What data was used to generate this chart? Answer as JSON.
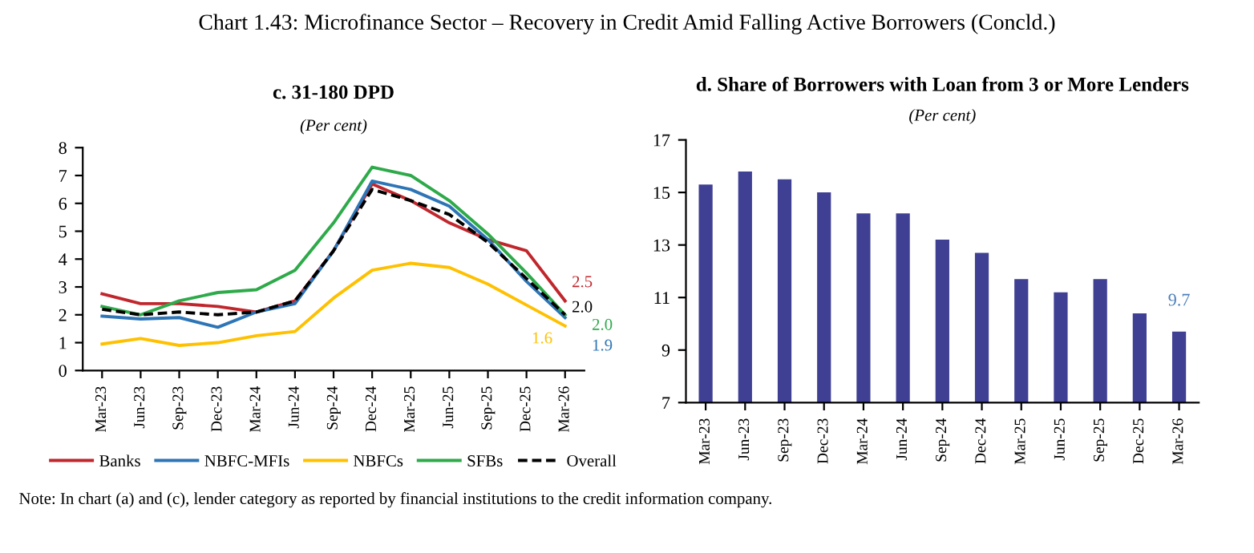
{
  "chart_data": [
    {
      "type": "line",
      "title": "c. 31-180 DPD",
      "subtitle": "(Per cent)",
      "annotations": [
        "Chart 1.43: Microfinance Sector – Recovery in Credit Amid Falling Active Borrowers (Concld.)",
        "Note: In chart (a) and (c), lender category as reported by financial institutions to the credit information company."
      ],
      "categories": [
        "Mar-23",
        "Jun-23",
        "Sep-23",
        "Dec-23",
        "Mar-24",
        "Jun-24",
        "Sep-24",
        "Dec-24",
        "Mar-25",
        "Jun-25",
        "Sep-25",
        "Dec-25",
        "Mar-26"
      ],
      "series": [
        {
          "name": "Banks",
          "color": "#c0272d",
          "values": [
            2.75,
            2.4,
            2.4,
            2.3,
            2.1,
            2.5,
            4.3,
            6.7,
            6.1,
            5.3,
            4.7,
            4.3,
            2.5
          ],
          "value_labels": [
            null,
            null,
            null,
            null,
            null,
            null,
            null,
            null,
            null,
            null,
            null,
            null,
            "2.5"
          ]
        },
        {
          "name": "NBFC-MFIs",
          "color": "#2e75b6",
          "values": [
            1.95,
            1.85,
            1.9,
            1.55,
            2.1,
            2.4,
            4.3,
            6.8,
            6.5,
            5.9,
            4.7,
            3.2,
            1.9
          ],
          "value_labels": [
            null,
            null,
            null,
            null,
            null,
            null,
            null,
            null,
            null,
            null,
            null,
            null,
            "1.9"
          ]
        },
        {
          "name": "NBFCs",
          "color": "#ffc000",
          "values": [
            0.95,
            1.15,
            0.9,
            1.0,
            1.25,
            1.4,
            2.6,
            3.6,
            3.85,
            3.7,
            3.1,
            2.35,
            1.6
          ],
          "value_labels": [
            null,
            null,
            null,
            null,
            null,
            null,
            null,
            null,
            null,
            null,
            null,
            null,
            "1.6"
          ]
        },
        {
          "name": "SFBs",
          "color": "#2eaa4a",
          "values": [
            2.3,
            2.0,
            2.5,
            2.8,
            2.9,
            3.6,
            5.3,
            7.3,
            7.0,
            6.1,
            4.9,
            3.5,
            2.0
          ],
          "value_labels": [
            null,
            null,
            null,
            null,
            null,
            null,
            null,
            null,
            null,
            null,
            null,
            null,
            "2.0"
          ]
        },
        {
          "name": "Overall",
          "color": "#000000",
          "line_style": "dashed",
          "values": [
            2.2,
            2.0,
            2.1,
            2.0,
            2.1,
            2.5,
            4.3,
            6.5,
            6.1,
            5.6,
            4.6,
            3.3,
            2.0
          ],
          "value_labels": [
            null,
            null,
            null,
            null,
            null,
            null,
            null,
            null,
            null,
            null,
            null,
            null,
            "2.0"
          ]
        }
      ],
      "ylim": [
        0,
        8
      ],
      "yticks": [
        0,
        1,
        2,
        3,
        4,
        5,
        6,
        7,
        8
      ],
      "grid": false,
      "legend": "bottom",
      "line_style": "solid",
      "marker": "none"
    },
    {
      "type": "bar",
      "title": "d. Share of Borrowers with Loan from 3 or More Lenders",
      "subtitle": "(Per cent)",
      "categories": [
        "Mar-23",
        "Jun-23",
        "Sep-23",
        "Dec-23",
        "Mar-24",
        "Jun-24",
        "Sep-24",
        "Dec-24",
        "Mar-25",
        "Jun-25",
        "Sep-25",
        "Dec-25",
        "Mar-26"
      ],
      "series": [
        {
          "color": "#3f3f94",
          "values": [
            15.3,
            15.8,
            15.5,
            15.0,
            14.2,
            14.2,
            13.2,
            12.7,
            11.7,
            11.2,
            11.7,
            10.4,
            9.7
          ],
          "value_labels": [
            null,
            null,
            null,
            null,
            null,
            null,
            null,
            null,
            null,
            null,
            null,
            null,
            "9.7"
          ]
        }
      ],
      "ylim": [
        7,
        17
      ],
      "yticks": [
        7,
        9,
        11,
        13,
        15,
        17
      ],
      "grid": false,
      "legend": false
    }
  ]
}
